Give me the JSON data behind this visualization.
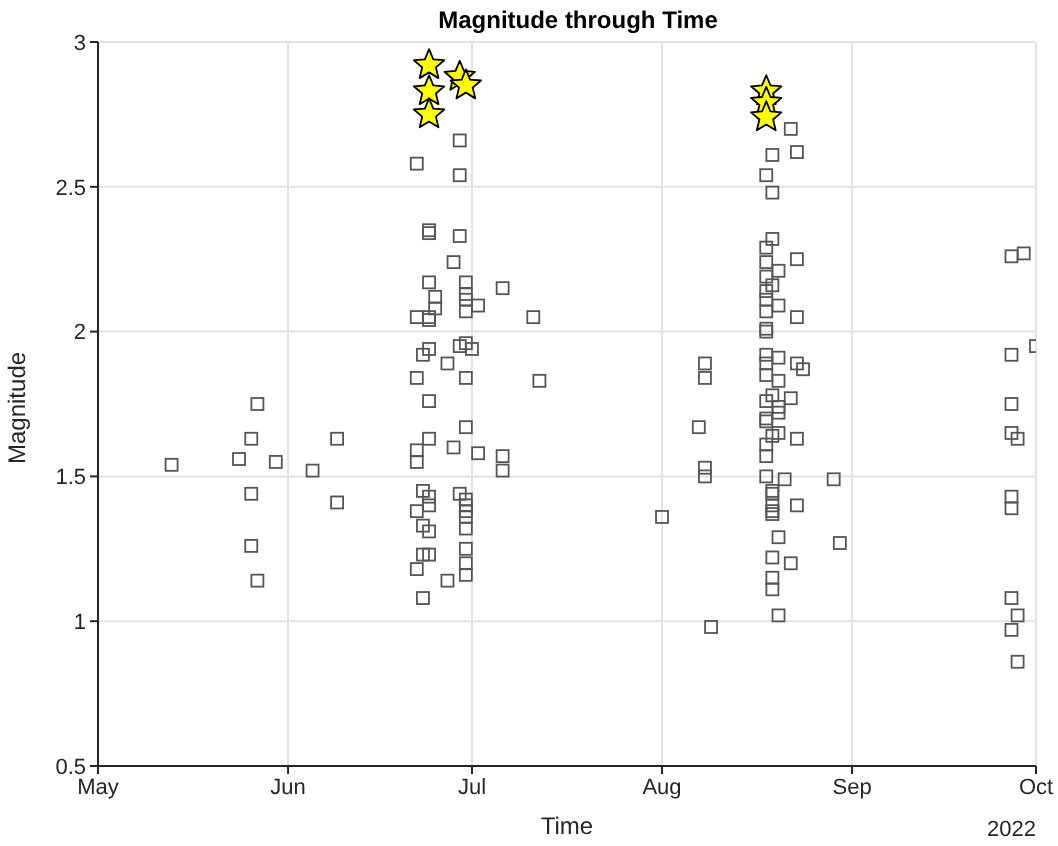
{
  "chart_data": {
    "type": "scatter",
    "title": "Magnitude through Time",
    "xlabel": "Time",
    "ylabel": "Magnitude",
    "annotations": [
      "2022"
    ],
    "xlim": [
      "2022-05-01",
      "2022-10-01"
    ],
    "xticks": [
      {
        "value": "2022-05-01",
        "label": "May"
      },
      {
        "value": "2022-06-01",
        "label": "Jun"
      },
      {
        "value": "2022-07-01",
        "label": "Jul"
      },
      {
        "value": "2022-08-01",
        "label": "Aug"
      },
      {
        "value": "2022-09-01",
        "label": "Sep"
      },
      {
        "value": "2022-10-01",
        "label": "Oct"
      }
    ],
    "ylim": [
      0.5,
      3
    ],
    "yticks": [
      0.5,
      1,
      1.5,
      2,
      2.5,
      3
    ],
    "grid": true,
    "series": [
      {
        "color": "#555555",
        "marker": "square",
        "x": [
          "2022-05-13",
          "2022-05-24",
          "2022-05-26",
          "2022-05-27",
          "2022-05-30",
          "2022-05-26",
          "2022-05-26",
          "2022-05-27",
          "2022-06-05",
          "2022-06-09",
          "2022-06-09",
          "2022-06-29",
          "2022-06-22",
          "2022-06-29",
          "2022-06-24",
          "2022-06-24",
          "2022-06-29",
          "2022-06-28",
          "2022-06-24",
          "2022-06-30",
          "2022-07-06",
          "2022-06-30",
          "2022-06-25",
          "2022-06-30",
          "2022-07-02",
          "2022-06-25",
          "2022-07-11",
          "2022-06-30",
          "2022-06-22",
          "2022-06-24",
          "2022-06-24",
          "2022-06-30",
          "2022-06-29",
          "2022-07-01",
          "2022-06-24",
          "2022-06-23",
          "2022-06-27",
          "2022-06-22",
          "2022-06-30",
          "2022-07-12",
          "2022-06-24",
          "2022-06-30",
          "2022-06-24",
          "2022-06-28",
          "2022-07-02",
          "2022-06-22",
          "2022-06-22",
          "2022-07-06",
          "2022-07-06",
          "2022-06-23",
          "2022-06-24",
          "2022-06-24",
          "2022-06-29",
          "2022-06-30",
          "2022-06-30",
          "2022-06-22",
          "2022-06-30",
          "2022-06-30",
          "2022-06-23",
          "2022-06-24",
          "2022-06-30",
          "2022-06-30",
          "2022-06-23",
          "2022-06-24",
          "2022-06-30",
          "2022-06-30",
          "2022-06-22",
          "2022-06-27",
          "2022-06-23",
          "2022-08-01",
          "2022-08-22",
          "2022-08-23",
          "2022-08-19",
          "2022-08-18",
          "2022-08-19",
          "2022-08-19",
          "2022-08-18",
          "2022-08-23",
          "2022-08-18",
          "2022-08-20",
          "2022-08-18",
          "2022-08-19",
          "2022-08-18",
          "2022-08-18",
          "2022-08-20",
          "2022-08-18",
          "2022-08-23",
          "2022-08-18",
          "2022-08-18",
          "2022-08-08",
          "2022-08-08",
          "2022-08-18",
          "2022-08-20",
          "2022-08-18",
          "2022-08-23",
          "2022-08-24",
          "2022-08-18",
          "2022-08-20",
          "2022-08-19",
          "2022-08-18",
          "2022-08-22",
          "2022-08-20",
          "2022-08-20",
          "2022-08-18",
          "2022-08-18",
          "2022-08-07",
          "2022-08-20",
          "2022-08-19",
          "2022-08-23",
          "2022-08-18",
          "2022-08-18",
          "2022-08-08",
          "2022-08-08",
          "2022-08-18",
          "2022-08-21",
          "2022-08-29",
          "2022-08-19",
          "2022-08-19",
          "2022-08-19",
          "2022-08-19",
          "2022-08-19",
          "2022-08-23",
          "2022-08-20",
          "2022-08-30",
          "2022-08-19",
          "2022-08-22",
          "2022-08-19",
          "2022-08-19",
          "2022-08-20",
          "2022-08-09",
          "2022-09-27",
          "2022-09-29",
          "2022-10-01",
          "2022-09-27",
          "2022-09-27",
          "2022-09-27",
          "2022-09-28",
          "2022-09-27",
          "2022-09-27",
          "2022-09-27",
          "2022-09-28",
          "2022-09-27",
          "2022-09-28"
        ],
        "values": [
          1.54,
          1.56,
          1.63,
          1.75,
          1.55,
          1.44,
          1.26,
          1.14,
          1.52,
          1.63,
          1.41,
          2.66,
          2.58,
          2.54,
          2.35,
          2.34,
          2.33,
          2.24,
          2.17,
          2.17,
          2.15,
          2.13,
          2.12,
          2.11,
          2.09,
          2.08,
          2.05,
          2.07,
          2.05,
          2.04,
          2.05,
          1.96,
          1.95,
          1.94,
          1.94,
          1.92,
          1.89,
          1.84,
          1.84,
          1.83,
          1.76,
          1.67,
          1.63,
          1.6,
          1.58,
          1.59,
          1.55,
          1.57,
          1.52,
          1.45,
          1.43,
          1.4,
          1.44,
          1.42,
          1.4,
          1.38,
          1.38,
          1.36,
          1.33,
          1.31,
          1.32,
          1.25,
          1.23,
          1.23,
          1.2,
          1.16,
          1.18,
          1.14,
          1.08,
          1.36,
          2.7,
          2.62,
          2.61,
          2.54,
          2.48,
          2.32,
          2.29,
          2.25,
          2.24,
          2.21,
          2.19,
          2.16,
          2.14,
          2.11,
          2.09,
          2.07,
          2.05,
          2.01,
          2,
          1.89,
          1.84,
          1.92,
          1.91,
          1.89,
          1.89,
          1.87,
          1.85,
          1.83,
          1.78,
          1.76,
          1.77,
          1.74,
          1.72,
          1.7,
          1.69,
          1.67,
          1.65,
          1.64,
          1.63,
          1.61,
          1.57,
          1.53,
          1.5,
          1.5,
          1.49,
          1.49,
          1.45,
          1.44,
          1.4,
          1.38,
          1.37,
          1.4,
          1.29,
          1.27,
          1.22,
          1.2,
          1.15,
          1.11,
          1.02,
          0.98,
          2.26,
          2.27,
          1.95,
          1.92,
          1.75,
          1.65,
          1.63,
          1.43,
          1.39,
          1.08,
          1.02,
          0.97,
          0.86
        ]
      },
      {
        "color": "#ffff00",
        "marker": "star",
        "x": [
          "2022-06-24",
          "2022-06-24",
          "2022-06-24",
          "2022-06-29",
          "2022-06-30",
          "2022-08-18",
          "2022-08-18",
          "2022-08-18"
        ],
        "values": [
          2.92,
          2.83,
          2.75,
          2.88,
          2.85,
          2.83,
          2.79,
          2.74
        ]
      }
    ]
  }
}
